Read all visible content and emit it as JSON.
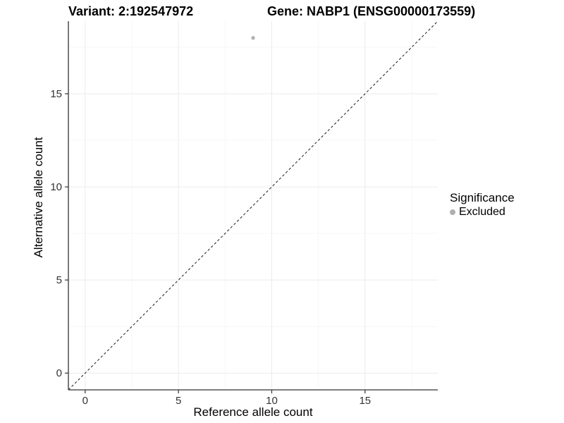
{
  "figure": {
    "title_variant": "Variant: 2:192547972",
    "title_gene": "Gene: NABP1 (ENSG00000173559)"
  },
  "chart_data": {
    "type": "scatter",
    "title": "Variant: 2:192547972  /  Gene: NABP1 (ENSG00000173559)",
    "xlabel": "Reference allele count",
    "ylabel": "Alternative allele count",
    "xlim": [
      -0.9,
      18.9
    ],
    "ylim": [
      -0.9,
      18.9
    ],
    "xticks": [
      0,
      5,
      10,
      15
    ],
    "yticks": [
      0,
      5,
      10,
      15
    ],
    "x_minor_ticks": [
      2.5,
      7.5,
      12.5,
      17.5
    ],
    "y_minor_ticks": [
      2.5,
      7.5,
      12.5,
      17.5
    ],
    "grid": "major-and-minor",
    "points": [
      {
        "x": 9,
        "y": 18,
        "series": "Excluded"
      }
    ],
    "identity_line": {
      "style": "dashed",
      "from": [
        -0.9,
        -0.9
      ],
      "to": [
        18.9,
        18.9
      ]
    },
    "legend": {
      "title": "Significance",
      "position": "right",
      "items": [
        {
          "label": "Excluded",
          "color": "#b0b0b0"
        }
      ]
    },
    "style": {
      "point_color": "#b0b0b0",
      "point_radius": 2.6,
      "grid_major_color": "#ebebeb",
      "grid_minor_color": "#f7f7f7",
      "axis_color": "#333333",
      "tick_label_color": "#333333",
      "identity_line_color": "#1a1a1a",
      "background": "#ffffff"
    }
  }
}
